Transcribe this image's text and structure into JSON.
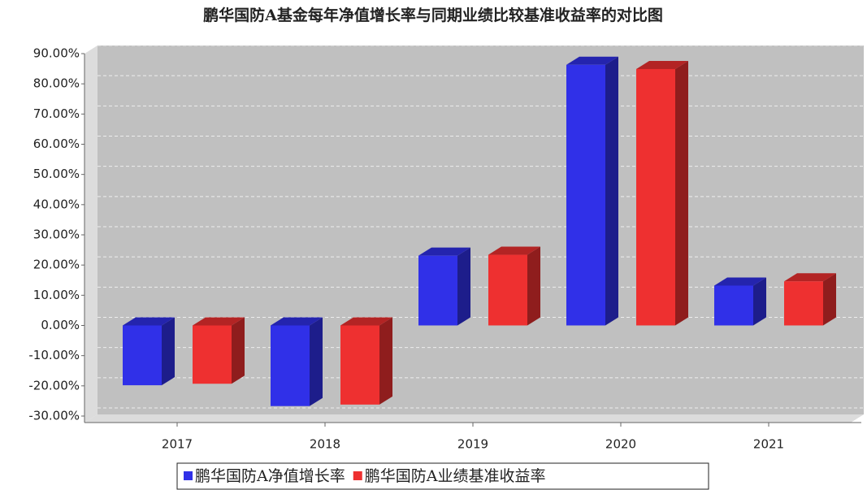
{
  "chart_data": {
    "type": "bar3d",
    "title": "鹏华国防A基金每年净值增长率与同期业绩比较基准收益率的对比图",
    "categories": [
      "2017",
      "2018",
      "2019",
      "2020",
      "2021"
    ],
    "series": [
      {
        "name": "鹏华国防A净值增长率",
        "color": "#3030e8",
        "values": [
          -19.8,
          -26.7,
          23.1,
          86.3,
          13.2
        ]
      },
      {
        "name": "鹏华国防A业绩基准收益率",
        "color": "#ee3030",
        "values": [
          -19.3,
          -26.2,
          23.4,
          84.9,
          14.6
        ]
      }
    ],
    "ylim": [
      -30,
      90
    ],
    "yticks": [
      {
        "value": -30,
        "label": "-30.00%"
      },
      {
        "value": -20,
        "label": "-20.00%"
      },
      {
        "value": -10,
        "label": "-10.00%"
      },
      {
        "value": 0,
        "label": "0.00%"
      },
      {
        "value": 10,
        "label": "10.00%"
      },
      {
        "value": 20,
        "label": "20.00%"
      },
      {
        "value": 30,
        "label": "30.00%"
      },
      {
        "value": 40,
        "label": "40.00%"
      },
      {
        "value": 50,
        "label": "50.00%"
      },
      {
        "value": 60,
        "label": "60.00%"
      },
      {
        "value": 70,
        "label": "70.00%"
      },
      {
        "value": 80,
        "label": "80.00%"
      },
      {
        "value": 90,
        "label": "90.00%"
      }
    ],
    "grid": true
  }
}
